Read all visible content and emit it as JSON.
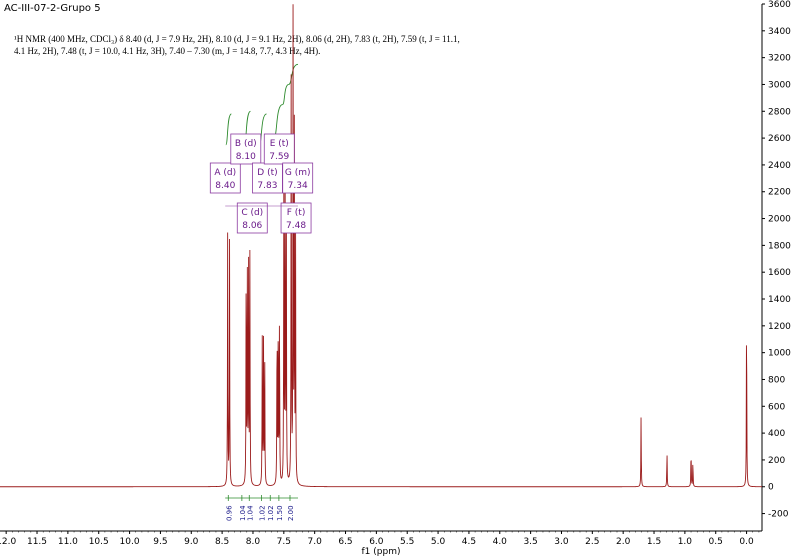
{
  "sample_id": "AC-III-07-2-Grupo 5",
  "nmr_description": {
    "line1": "¹H NMR (400 MHz, CDCl₃) δ 8.40 (d, J = 7.9 Hz, 2H), 8.10 (d, J = 9.1 Hz, 2H), 8.06 (d, 2H), 7.83 (t, 2H), 7.59 (t, J = 11.1,",
    "line2": "4.1 Hz, 2H), 7.48 (t, J = 10.0, 4.1 Hz, 3H), 7.40 – 7.30 (m, J = 14.8, 7.7, 4.3 Hz, 4H)."
  },
  "chart_data": {
    "type": "line",
    "xlabel": "f1 (ppm)",
    "ylabel": "",
    "xlim": [
      12.1,
      -0.25
    ],
    "ylim": [
      -330,
      3600
    ],
    "x_reversed": true,
    "x_ticks": [
      "12.0",
      "11.5",
      "11.0",
      "10.5",
      "10.0",
      "9.5",
      "9.0",
      "8.5",
      "8.0",
      "7.5",
      "7.0",
      "6.5",
      "6.0",
      "5.5",
      "5.0",
      "4.5",
      "4.0",
      "3.5",
      "3.0",
      "2.5",
      "2.0",
      "1.5",
      "1.0",
      "0.5",
      "0.0"
    ],
    "y_ticks": [
      "-200",
      "0",
      "200",
      "400",
      "600",
      "800",
      "1000",
      "1200",
      "1400",
      "1600",
      "1800",
      "2000",
      "2200",
      "2400",
      "2600",
      "2800",
      "3000",
      "3200",
      "3400",
      "3600"
    ],
    "line_color": "#9b1b1b",
    "peaks": [
      {
        "ppm": 8.41,
        "height": 1900
      },
      {
        "ppm": 8.38,
        "height": 1850
      },
      {
        "ppm": 8.11,
        "height": 1820
      },
      {
        "ppm": 8.09,
        "height": 1760
      },
      {
        "ppm": 8.07,
        "height": 1680
      },
      {
        "ppm": 8.05,
        "height": 1700
      },
      {
        "ppm": 7.85,
        "height": 1100
      },
      {
        "ppm": 7.83,
        "height": 1150
      },
      {
        "ppm": 7.81,
        "height": 1080
      },
      {
        "ppm": 7.61,
        "height": 1350
      },
      {
        "ppm": 7.59,
        "height": 1400
      },
      {
        "ppm": 7.57,
        "height": 1380
      },
      {
        "ppm": 7.5,
        "height": 2300
      },
      {
        "ppm": 7.48,
        "height": 2500
      },
      {
        "ppm": 7.46,
        "height": 2200
      },
      {
        "ppm": 7.38,
        "height": 3400
      },
      {
        "ppm": 7.35,
        "height": 3500
      },
      {
        "ppm": 7.33,
        "height": 2600
      },
      {
        "ppm": 7.31,
        "height": 1900
      },
      {
        "ppm": 1.71,
        "height": 530
      },
      {
        "ppm": 1.29,
        "height": 270
      },
      {
        "ppm": 0.9,
        "height": 290
      },
      {
        "ppm": 0.87,
        "height": 200
      },
      {
        "ppm": 0.0,
        "height": 1450
      }
    ],
    "multiplets": [
      {
        "label": "A (d)",
        "shift": "8.40",
        "ppm": 8.4
      },
      {
        "label": "B (d)",
        "shift": "8.10",
        "ppm": 8.1
      },
      {
        "label": "C (d)",
        "shift": "8.06",
        "ppm": 8.06
      },
      {
        "label": "D (t)",
        "shift": "7.83",
        "ppm": 7.83
      },
      {
        "label": "E (t)",
        "shift": "7.59",
        "ppm": 7.59
      },
      {
        "label": "F (t)",
        "shift": "7.48",
        "ppm": 7.48
      },
      {
        "label": "G (m)",
        "shift": "7.34",
        "ppm": 7.34
      }
    ],
    "integrals": [
      {
        "value": "0.96",
        "ppm": 8.4
      },
      {
        "value": "1.04",
        "ppm": 8.18
      },
      {
        "value": "1.04",
        "ppm": 8.06
      },
      {
        "value": "1.02",
        "ppm": 7.86
      },
      {
        "value": "1.02",
        "ppm": 7.72
      },
      {
        "value": "1.50",
        "ppm": 7.58
      },
      {
        "value": "2.00",
        "ppm": 7.4
      }
    ]
  }
}
